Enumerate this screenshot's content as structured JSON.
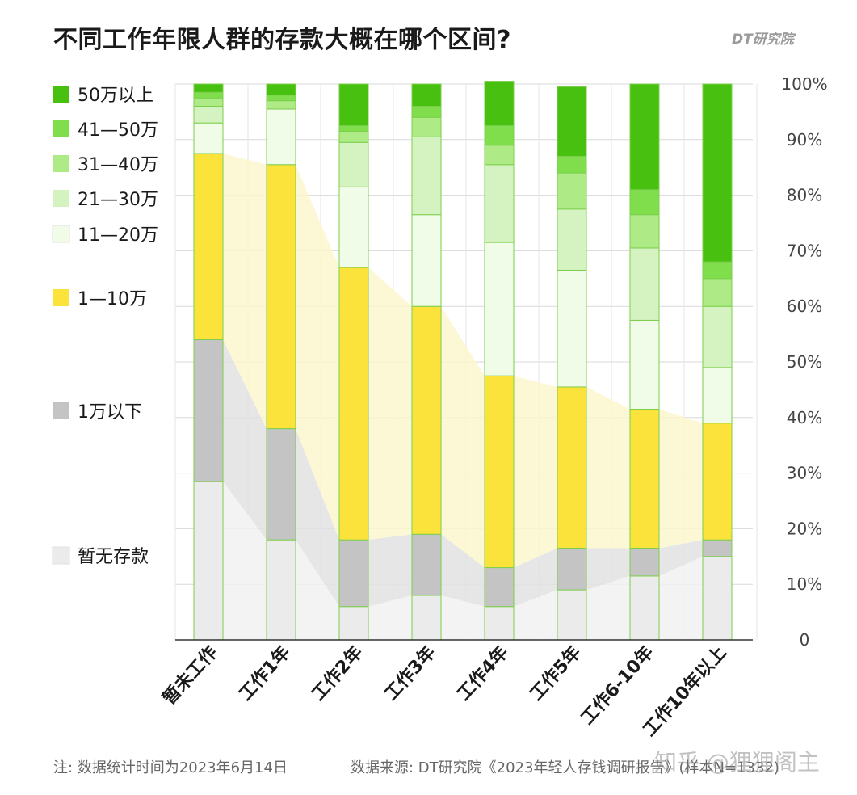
{
  "header": {
    "title": "不同工作年限人群的存款大概在哪个区间?",
    "brand": "DT研究院"
  },
  "footer": {
    "note": "注: 数据统计时间为2023年6月14日",
    "source": "数据来源: DT研究院《2023年轻人存钱调研报告》(样本N=1332)",
    "watermark": "知乎 @狸狸阁主"
  },
  "chart_data": {
    "type": "bar",
    "stacked": true,
    "normalized": true,
    "title": "不同工作年限人群的存款大概在哪个区间?",
    "categories": [
      "暂未工作",
      "工作1年",
      "工作2年",
      "工作3年",
      "工作4年",
      "工作5年",
      "工作6-10年",
      "工作10年以上"
    ],
    "yticks": [
      "0",
      "10%",
      "20%",
      "30%",
      "40%",
      "50%",
      "60%",
      "70%",
      "80%",
      "90%",
      "100%"
    ],
    "ylim": [
      0,
      100
    ],
    "grid": true,
    "legend_position": "left",
    "series": [
      {
        "name": "暂无存款",
        "color": "#ebebeb",
        "values": [
          28.5,
          18,
          6,
          8,
          6,
          9,
          11.5,
          15
        ]
      },
      {
        "name": "1万以下",
        "color": "#c4c4c4",
        "values": [
          25.5,
          20,
          12,
          11,
          7,
          7.5,
          5,
          3
        ]
      },
      {
        "name": "1—10万",
        "color": "#fbe33c",
        "values": [
          33.5,
          47.5,
          49,
          41,
          34.5,
          29,
          25,
          21
        ]
      },
      {
        "name": "11—20万",
        "color": "#f0fbe8",
        "values": [
          5.5,
          10,
          14.5,
          16.5,
          24,
          21,
          16,
          10
        ]
      },
      {
        "name": "21—30万",
        "color": "#d5f3c1",
        "values": [
          3,
          0,
          8,
          14,
          14,
          11,
          13,
          11
        ]
      },
      {
        "name": "31—40万",
        "color": "#aeea86",
        "values": [
          1.5,
          1.5,
          2,
          3.5,
          3.5,
          6.5,
          6,
          5
        ]
      },
      {
        "name": "41—50万",
        "color": "#80de4c",
        "values": [
          1,
          1,
          1,
          2,
          3.5,
          3,
          4.5,
          3
        ]
      },
      {
        "name": "50万以上",
        "color": "#48c010",
        "values": [
          1.5,
          2,
          7.5,
          4,
          8,
          12.5,
          19,
          32
        ]
      }
    ]
  }
}
